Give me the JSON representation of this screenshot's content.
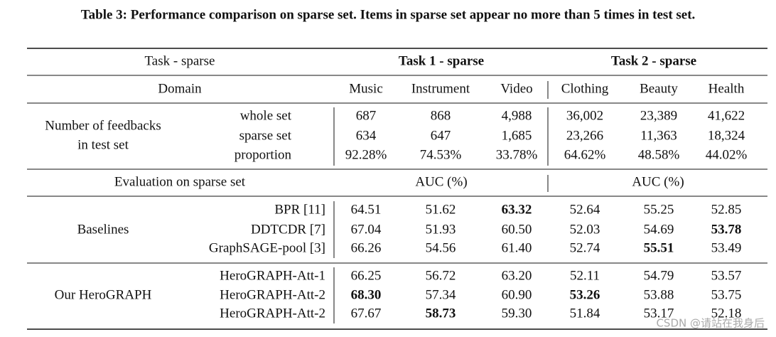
{
  "caption": "Table 3: Performance comparison on sparse set. Items in sparse set appear no more than 5 times in test set.",
  "header": {
    "task_label": "Task - sparse",
    "task1": "Task 1 - sparse",
    "task2": "Task 2 - sparse",
    "domain_label": "Domain",
    "domains": [
      "Music",
      "Instrument",
      "Video",
      "Clothing",
      "Beauty",
      "Health"
    ]
  },
  "feedbacks": {
    "label": [
      "Number of feedbacks",
      "in test set"
    ],
    "rows": [
      {
        "name": "whole set",
        "cells": [
          "687",
          "868",
          "4,988",
          "36,002",
          "23,389",
          "41,622"
        ]
      },
      {
        "name": "sparse set",
        "cells": [
          "634",
          "647",
          "1,685",
          "23,266",
          "11,363",
          "18,324"
        ]
      },
      {
        "name": "proportion",
        "cells": [
          "92.28%",
          "74.53%",
          "33.78%",
          "64.62%",
          "48.58%",
          "44.02%"
        ]
      }
    ]
  },
  "evaluation": {
    "label": "Evaluation on sparse set",
    "metric1": "AUC (%)",
    "metric2": "AUC (%)"
  },
  "groups": [
    {
      "label": "Baselines",
      "rows": [
        {
          "name": "BPR [11]",
          "cells": [
            "64.51",
            "51.62",
            "63.32",
            "52.64",
            "55.25",
            "52.85"
          ],
          "bold": [
            2
          ]
        },
        {
          "name": "DDTCDR [7]",
          "cells": [
            "67.04",
            "51.93",
            "60.50",
            "52.03",
            "54.69",
            "53.78"
          ],
          "bold": [
            5
          ]
        },
        {
          "name": "GraphSAGE-pool [3]",
          "cells": [
            "66.26",
            "54.56",
            "61.40",
            "52.74",
            "55.51",
            "53.49"
          ],
          "bold": [
            4
          ]
        }
      ]
    },
    {
      "label": "Our HeroGRAPH",
      "rows": [
        {
          "name": "HeroGRAPH-Att-1",
          "cells": [
            "66.25",
            "56.72",
            "63.20",
            "52.11",
            "54.79",
            "53.57"
          ],
          "bold": []
        },
        {
          "name": "HeroGRAPH-Att-2",
          "cells": [
            "68.30",
            "57.34",
            "60.90",
            "53.26",
            "53.88",
            "53.75"
          ],
          "bold": [
            0,
            3
          ]
        },
        {
          "name": "HeroGRAPH-Att-2",
          "cells": [
            "67.67",
            "58.73",
            "59.30",
            "51.84",
            "53.17",
            "52.18"
          ],
          "bold": [
            1
          ]
        }
      ]
    }
  ],
  "watermark": "CSDN @请站在我身后"
}
